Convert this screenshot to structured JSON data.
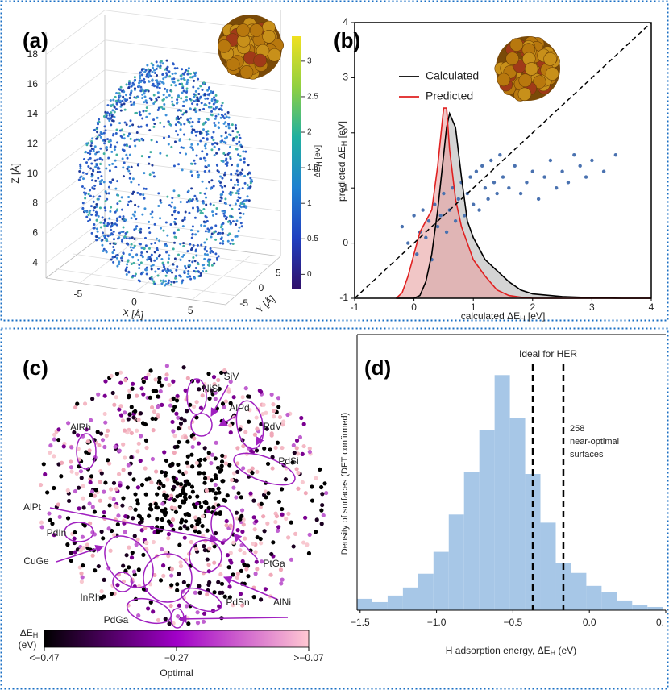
{
  "chart_data": [
    {
      "type": "scatter3d",
      "panel": "(a)",
      "xlabel": "X [Å]",
      "ylabel": "Y [Å]",
      "zlabel": "Z [Å]",
      "xlim": [
        -8,
        8
      ],
      "xticks": [
        -5,
        0,
        5
      ],
      "ylim": [
        -8,
        8
      ],
      "yticks": [
        -5,
        0,
        5
      ],
      "zlim": [
        3,
        19.5
      ],
      "zticks": [
        4,
        6,
        8,
        10,
        12,
        14,
        16,
        18
      ],
      "colorbar": {
        "label": [
          "ΔE",
          "H",
          " [eV]"
        ],
        "clim": [
          -0.2,
          3.35
        ],
        "ticks": [
          0,
          0.5,
          1,
          1.5,
          2,
          2.5,
          3
        ],
        "colors": [
          "#30106b",
          "#2040c0",
          "#1f80d0",
          "#20b0a0",
          "#90d040",
          "#f0e020"
        ]
      }
    },
    {
      "type": "scatter",
      "panel": "(b)",
      "xlabel": [
        "calculated ΔE",
        "H",
        " [eV]"
      ],
      "ylabel": [
        "predicted ΔE",
        "H",
        " [eV]"
      ],
      "xlim": [
        -1,
        4
      ],
      "ylim": [
        -1,
        4
      ],
      "xticks": [
        -1,
        0,
        1,
        2,
        3,
        4
      ],
      "yticks": [
        -1,
        0,
        1,
        2,
        3,
        4
      ],
      "diagonal": true,
      "points": {
        "color": "#4a72b0",
        "x": [
          -0.2,
          -0.1,
          0.0,
          0.05,
          0.1,
          0.15,
          0.2,
          0.25,
          0.3,
          0.35,
          0.4,
          0.45,
          0.5,
          0.55,
          0.6,
          0.65,
          0.7,
          0.75,
          0.8,
          0.85,
          0.9,
          0.95,
          1.0,
          1.05,
          1.1,
          1.15,
          1.2,
          1.25,
          1.3,
          1.35,
          1.4,
          1.45,
          1.5,
          1.6,
          1.7,
          1.8,
          1.9,
          2.0,
          2.1,
          2.2,
          2.3,
          2.4,
          2.5,
          2.6,
          2.7,
          2.8,
          2.9,
          3.0,
          3.2,
          3.4
        ],
        "values": [
          0.3,
          0.0,
          0.5,
          -0.2,
          0.2,
          0.6,
          0.1,
          0.4,
          -0.3,
          0.7,
          0.3,
          0.5,
          0.9,
          0.2,
          0.6,
          1.0,
          0.4,
          0.8,
          1.1,
          0.5,
          0.9,
          1.2,
          0.7,
          1.3,
          0.6,
          1.4,
          1.0,
          0.8,
          1.5,
          1.1,
          0.9,
          1.6,
          1.2,
          1.0,
          1.4,
          0.9,
          1.1,
          1.3,
          0.8,
          1.2,
          1.5,
          1.0,
          1.3,
          1.1,
          1.6,
          1.4,
          1.2,
          1.5,
          1.3,
          1.6
        ]
      },
      "series": [
        {
          "name": "Calculated",
          "color": "#000000",
          "fill": "#b8b8b8",
          "x": [
            -0.3,
            -0.2,
            -0.1,
            0,
            0.1,
            0.2,
            0.3,
            0.4,
            0.5,
            0.55,
            0.6,
            0.7,
            0.8,
            0.9,
            1.0,
            1.1,
            1.2,
            1.4,
            1.6,
            1.8,
            2.0,
            2.5,
            3.0,
            3.5,
            4.0
          ],
          "values": [
            -1,
            -1,
            -1,
            -1,
            -0.95,
            -0.7,
            -0.2,
            0.6,
            1.6,
            2.1,
            2.35,
            2.1,
            1.2,
            0.4,
            0.1,
            -0.1,
            -0.3,
            -0.5,
            -0.7,
            -0.85,
            -0.92,
            -0.97,
            -0.99,
            -1,
            -1
          ]
        },
        {
          "name": "Predicted",
          "color": "#e02020",
          "fill": "#e8a0a0",
          "x": [
            -0.3,
            -0.2,
            -0.1,
            0,
            0.1,
            0.2,
            0.3,
            0.4,
            0.5,
            0.55,
            0.6,
            0.7,
            0.8,
            0.9,
            1.0,
            1.1,
            1.2,
            1.4,
            1.6,
            1.8,
            2.0,
            2.5,
            3.0,
            3.5,
            4.0
          ],
          "values": [
            -1,
            -0.9,
            -0.6,
            -0.2,
            0.2,
            0.4,
            0.6,
            1.4,
            2.45,
            2.45,
            1.7,
            0.8,
            0.3,
            0.0,
            -0.3,
            -0.45,
            -0.6,
            -0.85,
            -0.95,
            -0.98,
            -1,
            -1,
            -1,
            -1,
            -1
          ]
        }
      ]
    },
    {
      "type": "tsne",
      "panel": "(c)",
      "annotations": [
        "NiSi",
        "SiV",
        "AlPd",
        "PdV",
        "AlRh",
        "PdSi",
        "AlPt",
        "PdIn",
        "CuGe",
        "PtGa",
        "InRh",
        "PdSn",
        "AlNi",
        "PdGa"
      ],
      "colorbar": {
        "label": [
          "ΔE",
          "H"
        ],
        "unit": "(eV)",
        "clim": [
          -0.47,
          -0.07
        ],
        "ticks": [
          {
            "value": -0.47,
            "label": "<−0.47"
          },
          {
            "value": -0.27,
            "label": "−0.27"
          },
          {
            "value": -0.07,
            "label": ">−0.07"
          }
        ],
        "optimal_label": "Optimal",
        "colors": [
          "#000000",
          "#a000c8",
          "#ffc8d2"
        ]
      }
    },
    {
      "type": "histogram",
      "panel": "(d)",
      "title": "Ideal for HER",
      "annotation": [
        "258",
        "near-optimal",
        "surfaces"
      ],
      "xlabel": [
        "H adsorption energy, ΔE",
        "H",
        " (eV)"
      ],
      "ylabel": "Density of surfaces (DFT confirmed)",
      "bins": [
        -1.52,
        -1.42,
        -1.32,
        -1.22,
        -1.12,
        -1.02,
        -0.92,
        -0.82,
        -0.72,
        -0.62,
        -0.52,
        -0.42,
        -0.32,
        -0.22,
        -0.12,
        -0.02,
        0.08,
        0.18,
        0.28,
        0.38,
        0.48
      ],
      "values": [
        14,
        10,
        18,
        28,
        45,
        72,
        118,
        170,
        222,
        290,
        237,
        168,
        108,
        58,
        46,
        30,
        22,
        12,
        6,
        4
      ],
      "color": "#a7c7e7",
      "xlim": [
        -1.52,
        0.5
      ],
      "ylim": [
        0,
        340
      ],
      "xticks": [
        {
          "value": -1.5,
          "label": "−1.5"
        },
        {
          "value": -1.0,
          "label": "−1.0"
        },
        {
          "value": -0.5,
          "label": "−0.5"
        },
        {
          "value": 0.0,
          "label": "0.0"
        },
        {
          "value": 0.5,
          "label": "0."
        }
      ],
      "vlines": [
        -0.37,
        -0.17
      ]
    }
  ]
}
